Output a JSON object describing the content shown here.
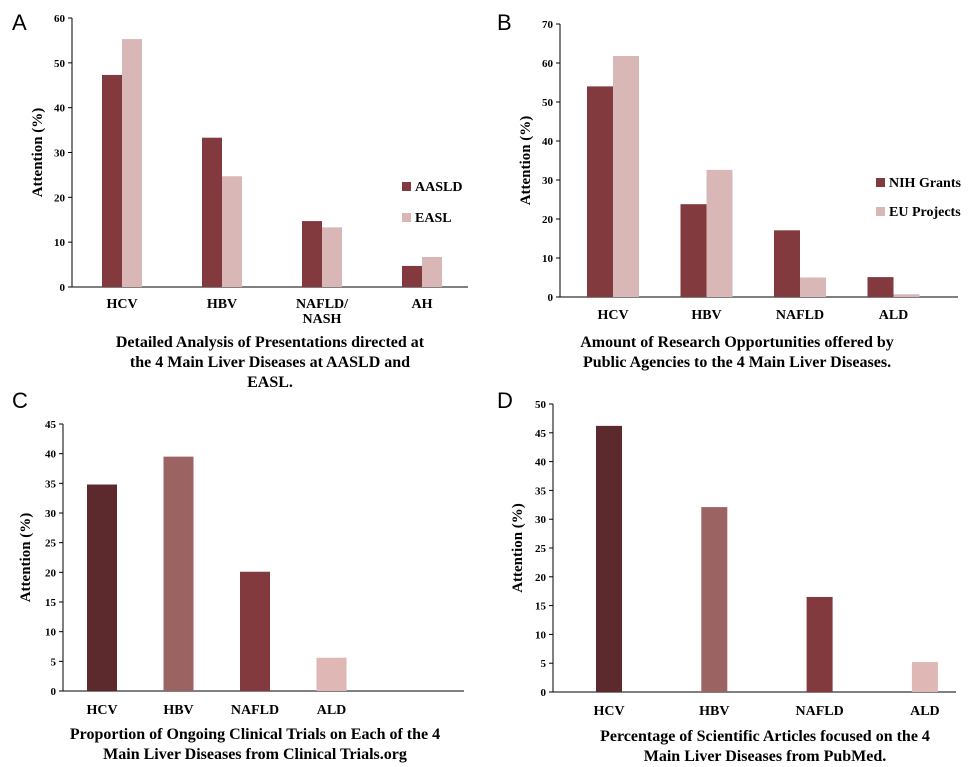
{
  "chart_data": [
    {
      "panel": "A",
      "type": "bar",
      "categories": [
        [
          "HCV"
        ],
        [
          "HBV"
        ],
        [
          "NAFLD/",
          "NASH"
        ],
        [
          "AH"
        ]
      ],
      "series": [
        {
          "name": "AASLD",
          "values": [
            47.3,
            33.3,
            14.7,
            4.7
          ],
          "color": "#833a3e"
        },
        {
          "name": "EASL",
          "values": [
            55.3,
            24.7,
            13.3,
            6.7
          ],
          "color": "#d9b7b6"
        }
      ],
      "ylabel": "Attention (%)",
      "ylim": [
        0,
        60
      ],
      "yticks": [
        0,
        10,
        20,
        30,
        40,
        50,
        60
      ],
      "legend": "right",
      "caption": [
        "Detailed Analysis of Presentations directed at",
        "the 4 Main Liver Diseases  at AASLD and",
        "EASL."
      ],
      "grid": false
    },
    {
      "panel": "B",
      "type": "bar",
      "categories": [
        [
          "HCV"
        ],
        [
          "HBV"
        ],
        [
          "NAFLD"
        ],
        [
          "ALD"
        ]
      ],
      "series": [
        {
          "name": "NIH Grants",
          "values": [
            54,
            23.8,
            17.1,
            5.1
          ],
          "color": "#833a3e"
        },
        {
          "name": "EU Projects",
          "values": [
            61.8,
            32.6,
            5,
            0.7
          ],
          "color": "#d9b7b6"
        }
      ],
      "ylabel": "Attention (%)",
      "ylim": [
        0,
        70
      ],
      "yticks": [
        0,
        10,
        20,
        30,
        40,
        50,
        60,
        70
      ],
      "legend": "right",
      "caption": [
        "Amount of Research Opportunities offered by",
        "Public Agencies to the 4 Main Liver Diseases."
      ],
      "grid": false
    },
    {
      "panel": "C",
      "type": "bar",
      "categories": [
        [
          "HCV"
        ],
        [
          "HBV"
        ],
        [
          "NAFLD"
        ],
        [
          "ALD"
        ]
      ],
      "series": [
        {
          "values": [
            34.8,
            39.5,
            20.1,
            5.6
          ],
          "colors": [
            "#5c2a2c",
            "#9b6462",
            "#833a3e",
            "#dfb7b5"
          ]
        }
      ],
      "ylabel": "Attention (%)",
      "ylim": [
        0,
        45
      ],
      "yticks": [
        0,
        5,
        10,
        15,
        20,
        25,
        30,
        35,
        40,
        45
      ],
      "caption": [
        "Proportion of Ongoing Clinical Trials on Each of the 4",
        "Main Liver Diseases from Clinical Trials.org"
      ],
      "grid": false
    },
    {
      "panel": "D",
      "type": "bar",
      "categories": [
        [
          "HCV"
        ],
        [
          "HBV"
        ],
        [
          "NAFLD"
        ],
        [
          "ALD"
        ]
      ],
      "series": [
        {
          "values": [
            46.2,
            32.1,
            16.5,
            5.2
          ],
          "colors": [
            "#5c2a2c",
            "#9b6462",
            "#833a3e",
            "#dfb7b5"
          ]
        }
      ],
      "ylabel": "Attention (%)",
      "ylim": [
        0,
        50
      ],
      "yticks": [
        0,
        5,
        10,
        15,
        20,
        25,
        30,
        35,
        40,
        45,
        50
      ],
      "caption": [
        "Percentage of Scientific Articles focused on the 4",
        "Main Liver Diseases from PubMed."
      ],
      "grid": false
    }
  ]
}
